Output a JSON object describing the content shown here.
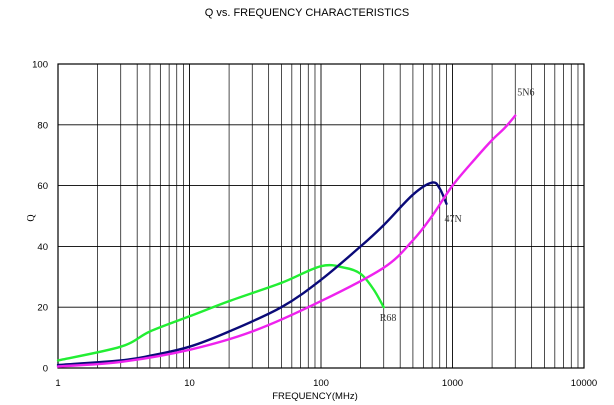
{
  "chart_data": {
    "type": "line",
    "title": "Q vs. FREQUENCY CHARACTERISTICS",
    "xlabel": "FREQUENCY(MHz)",
    "ylabel": "Q",
    "x_scale": "log",
    "xlim": [
      1,
      10000
    ],
    "ylim": [
      0,
      100
    ],
    "x_ticks": [
      1,
      10,
      100,
      1000,
      10000
    ],
    "x_tick_labels": [
      "1",
      "10",
      "100",
      "1000",
      "10000"
    ],
    "y_ticks": [
      0,
      20,
      40,
      60,
      80,
      100
    ],
    "y_tick_labels": [
      "0",
      "20",
      "40",
      "60",
      "80",
      "100"
    ],
    "grid": true,
    "legend": "none (curves labeled inline)",
    "series": [
      {
        "name": "R68",
        "color": "#22ee33",
        "x": [
          1,
          3,
          5,
          10,
          20,
          50,
          100,
          150,
          200,
          250,
          300
        ],
        "y": [
          2.5,
          7,
          12,
          17,
          22,
          28,
          33.5,
          33,
          31,
          26,
          20
        ]
      },
      {
        "name": "47N",
        "color": "#0a0a78",
        "x": [
          1,
          3,
          5,
          10,
          20,
          50,
          100,
          200,
          300,
          500,
          700,
          800,
          900
        ],
        "y": [
          1,
          2.5,
          4,
          7,
          12,
          20,
          29,
          40,
          47,
          57,
          61,
          59,
          54
        ]
      },
      {
        "name": "5N6",
        "color": "#ee22ee",
        "x": [
          1,
          3,
          10,
          30,
          100,
          300,
          500,
          700,
          1000,
          1500,
          2000,
          2500,
          3000
        ],
        "y": [
          0.5,
          2,
          6,
          12,
          22,
          33,
          42,
          50,
          60,
          69,
          75,
          79,
          83
        ]
      }
    ]
  }
}
